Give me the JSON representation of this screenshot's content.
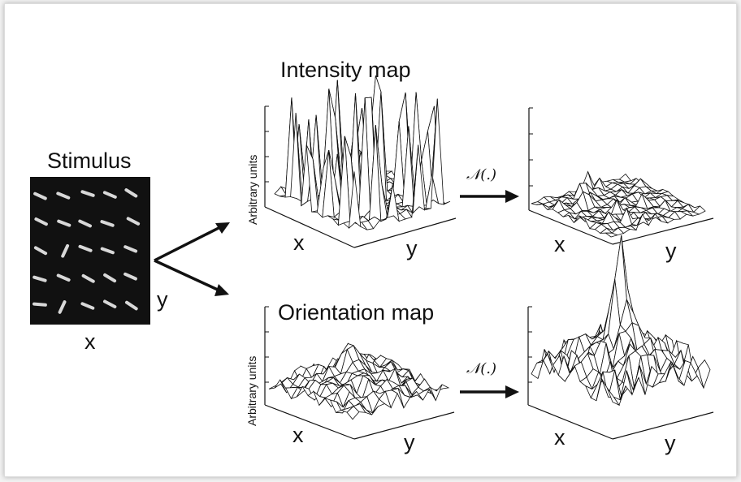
{
  "stimulus": {
    "title": "Stimulus",
    "x_label": "x",
    "y_label": "y"
  },
  "intensity": {
    "title": "Intensity map",
    "y_axis_label": "Arbitrary units",
    "x_label": "x",
    "y_label": "y",
    "normalized_x_label": "x",
    "normalized_y_label": "y"
  },
  "orientation": {
    "title": "Orientation map",
    "y_axis_label": "Arbitrary units",
    "x_label": "x",
    "y_label": "y",
    "normalized_x_label": "x",
    "normalized_y_label": "y"
  },
  "operator_label": "𝒩(.)",
  "colors": {
    "stimulus_bg": "#111111",
    "bar": "#d8d8d8",
    "line": "#111111"
  }
}
